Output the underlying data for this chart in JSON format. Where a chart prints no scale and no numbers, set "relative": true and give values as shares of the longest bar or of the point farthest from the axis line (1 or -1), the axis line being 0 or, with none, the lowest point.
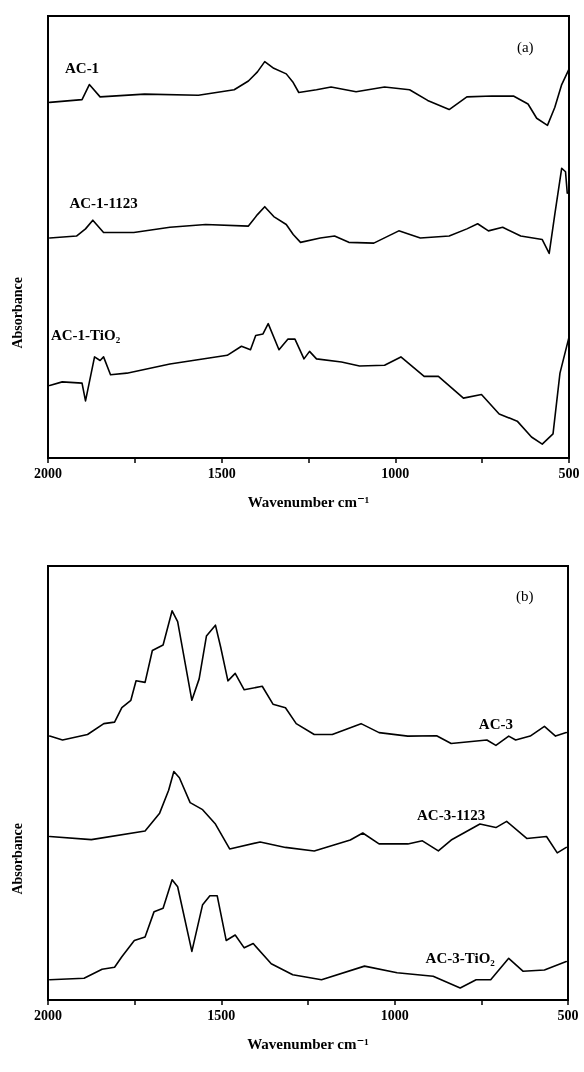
{
  "chart_data": [
    {
      "type": "line",
      "relative": true,
      "xlabel": "Wavenumber cm⁻¹",
      "ylabel": "Absorbance",
      "annotations": [
        "(a)"
      ],
      "xlim": [
        2000,
        500
      ],
      "xticks": [
        2000,
        {
          "value": 1750,
          "label": null
        },
        1500,
        {
          "value": 1250,
          "label": null
        },
        1000,
        {
          "value": 750,
          "label": null
        },
        500
      ],
      "grid": false,
      "legend": false,
      "marker": "none",
      "line_style": "solid",
      "series": [
        {
          "name": "AC-1",
          "color": "#000000",
          "x": [
            1995,
            1902,
            1881,
            1850,
            1722,
            1567,
            1464,
            1423,
            1397,
            1376,
            1350,
            1314,
            1294,
            1278,
            1227,
            1185,
            1113,
            1031,
            959,
            907,
            845,
            794,
            722,
            660,
            618,
            593,
            562,
            541,
            521,
            500
          ],
          "values": [
            0.897,
            0.904,
            0.942,
            0.911,
            0.918,
            0.915,
            0.929,
            0.951,
            0.974,
            1.0,
            0.983,
            0.969,
            0.947,
            0.922,
            0.929,
            0.936,
            0.924,
            0.936,
            0.929,
            0.902,
            0.879,
            0.911,
            0.913,
            0.913,
            0.893,
            0.857,
            0.839,
            0.884,
            0.942,
            0.981
          ]
        },
        {
          "name": "AC-1-1123",
          "color": "#000000",
          "x": [
            1995,
            1918,
            1892,
            1871,
            1840,
            1753,
            1649,
            1546,
            1423,
            1397,
            1376,
            1350,
            1314,
            1294,
            1273,
            1216,
            1175,
            1134,
            1062,
            990,
            928,
            845,
            794,
            763,
            732,
            691,
            639,
            577,
            557,
            541,
            521,
            510,
            505
          ],
          "values": [
            0.555,
            0.56,
            0.578,
            0.6,
            0.569,
            0.569,
            0.582,
            0.589,
            0.585,
            0.614,
            0.634,
            0.609,
            0.589,
            0.564,
            0.544,
            0.555,
            0.56,
            0.544,
            0.542,
            0.573,
            0.555,
            0.56,
            0.578,
            0.591,
            0.573,
            0.582,
            0.56,
            0.551,
            0.516,
            0.614,
            0.731,
            0.722,
            0.668
          ]
        },
        {
          "name": "AC-1-TiO₂",
          "color": "#000000",
          "x": [
            1995,
            1959,
            1902,
            1892,
            1866,
            1850,
            1840,
            1820,
            1773,
            1649,
            1484,
            1443,
            1417,
            1402,
            1381,
            1366,
            1335,
            1309,
            1289,
            1263,
            1247,
            1227,
            1155,
            1103,
            1031,
            984,
            917,
            876,
            804,
            752,
            701,
            649,
            608,
            577,
            546,
            526,
            500
          ],
          "values": [
            0.183,
            0.192,
            0.189,
            0.144,
            0.255,
            0.246,
            0.255,
            0.21,
            0.214,
            0.237,
            0.259,
            0.282,
            0.273,
            0.309,
            0.313,
            0.339,
            0.273,
            0.3,
            0.3,
            0.25,
            0.269,
            0.25,
            0.242,
            0.232,
            0.234,
            0.255,
            0.206,
            0.206,
            0.151,
            0.16,
            0.111,
            0.093,
            0.053,
            0.035,
            0.061,
            0.214,
            0.305
          ]
        }
      ]
    },
    {
      "type": "line",
      "relative": true,
      "xlabel": "Wavenumber cm⁻¹",
      "ylabel": "Absorbance",
      "annotations": [
        "(b)"
      ],
      "xlim": [
        2000,
        500
      ],
      "xticks": [
        2000,
        {
          "value": 1750,
          "label": null
        },
        1500,
        {
          "value": 1250,
          "label": null
        },
        1000,
        {
          "value": 750,
          "label": null
        },
        500
      ],
      "grid": false,
      "legend": false,
      "marker": "none",
      "line_style": "solid",
      "series": [
        {
          "name": "AC-3",
          "color": "#000000",
          "x": [
            1995,
            1958,
            1886,
            1839,
            1808,
            1787,
            1761,
            1746,
            1720,
            1699,
            1668,
            1642,
            1626,
            1585,
            1564,
            1543,
            1517,
            1502,
            1481,
            1460,
            1434,
            1382,
            1351,
            1315,
            1284,
            1232,
            1180,
            1097,
            1045,
            962,
            879,
            837,
            734,
            708,
            671,
            651,
            609,
            568,
            536,
            505
          ],
          "values": [
            0.678,
            0.668,
            0.682,
            0.71,
            0.714,
            0.751,
            0.77,
            0.82,
            0.816,
            0.898,
            0.912,
            1.0,
            0.972,
            0.77,
            0.825,
            0.935,
            0.963,
            0.907,
            0.82,
            0.839,
            0.797,
            0.806,
            0.76,
            0.751,
            0.71,
            0.682,
            0.682,
            0.71,
            0.687,
            0.678,
            0.679,
            0.659,
            0.668,
            0.654,
            0.678,
            0.668,
            0.678,
            0.703,
            0.678,
            0.687
          ]
        },
        {
          "name": "AC-3-1123",
          "color": "#000000",
          "x": [
            1995,
            1875,
            1720,
            1678,
            1652,
            1637,
            1621,
            1590,
            1554,
            1517,
            1476,
            1388,
            1315,
            1232,
            1128,
            1092,
            1045,
            962,
            920,
            874,
            837,
            754,
            708,
            677,
            619,
            562,
            531,
            505
          ],
          "values": [
            0.42,
            0.412,
            0.434,
            0.48,
            0.539,
            0.587,
            0.571,
            0.507,
            0.489,
            0.452,
            0.388,
            0.406,
            0.392,
            0.383,
            0.411,
            0.429,
            0.401,
            0.401,
            0.409,
            0.383,
            0.411,
            0.452,
            0.443,
            0.459,
            0.415,
            0.42,
            0.378,
            0.392
          ]
        },
        {
          "name": "AC-3-TiO₂",
          "color": "#000000",
          "x": [
            1995,
            1896,
            1844,
            1808,
            1787,
            1751,
            1720,
            1694,
            1668,
            1642,
            1626,
            1585,
            1554,
            1533,
            1512,
            1486,
            1460,
            1434,
            1408,
            1356,
            1294,
            1211,
            1087,
            993,
            889,
            811,
            765,
            723,
            671,
            630,
            568,
            505
          ],
          "values": [
            0.052,
            0.056,
            0.079,
            0.084,
            0.111,
            0.153,
            0.162,
            0.227,
            0.236,
            0.309,
            0.291,
            0.125,
            0.245,
            0.268,
            0.268,
            0.153,
            0.167,
            0.134,
            0.145,
            0.093,
            0.065,
            0.052,
            0.087,
            0.07,
            0.061,
            0.031,
            0.052,
            0.052,
            0.107,
            0.074,
            0.077,
            0.099
          ]
        }
      ]
    }
  ]
}
